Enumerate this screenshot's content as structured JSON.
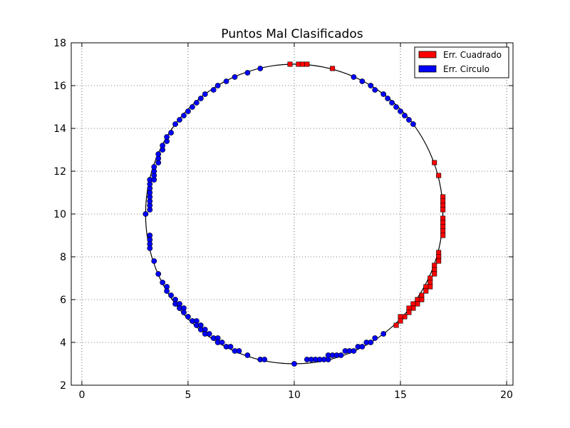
{
  "chart_data": {
    "type": "scatter",
    "title": "Puntos Mal Clasificados",
    "xlabel": "",
    "ylabel": "",
    "xlim": [
      -0.5,
      20.3
    ],
    "ylim": [
      2,
      18
    ],
    "xticks": [
      0,
      5,
      10,
      15,
      20
    ],
    "yticks": [
      2,
      4,
      6,
      8,
      10,
      12,
      14,
      16,
      18
    ],
    "grid": true,
    "legend_position": "top-right",
    "reference_curve": {
      "shape": "circle",
      "center": [
        10,
        10
      ],
      "radius": 7,
      "color": "#000000"
    },
    "series": [
      {
        "name": "Err. Cuadrado",
        "marker": "square",
        "color": "#ff0000",
        "points": [
          [
            9.8,
            17.0
          ],
          [
            10.2,
            17.0
          ],
          [
            10.4,
            17.0
          ],
          [
            10.6,
            17.0
          ],
          [
            11.8,
            16.8
          ],
          [
            16.6,
            12.4
          ],
          [
            16.8,
            11.8
          ],
          [
            17.0,
            10.8
          ],
          [
            17.0,
            10.6
          ],
          [
            17.0,
            10.4
          ],
          [
            17.0,
            10.2
          ],
          [
            17.0,
            9.8
          ],
          [
            17.0,
            9.6
          ],
          [
            17.0,
            9.4
          ],
          [
            17.0,
            9.2
          ],
          [
            17.0,
            9.0
          ],
          [
            16.8,
            8.2
          ],
          [
            16.8,
            8.0
          ],
          [
            16.8,
            7.8
          ],
          [
            16.6,
            7.6
          ],
          [
            16.6,
            7.4
          ],
          [
            16.6,
            7.2
          ],
          [
            16.4,
            7.0
          ],
          [
            16.4,
            6.8
          ],
          [
            16.4,
            6.6
          ],
          [
            16.2,
            6.6
          ],
          [
            16.2,
            6.4
          ],
          [
            16.0,
            6.2
          ],
          [
            16.0,
            6.0
          ],
          [
            15.8,
            6.0
          ],
          [
            15.8,
            5.8
          ],
          [
            15.6,
            5.8
          ],
          [
            15.6,
            5.6
          ],
          [
            15.4,
            5.6
          ],
          [
            15.4,
            5.4
          ],
          [
            15.2,
            5.2
          ],
          [
            15.0,
            5.2
          ],
          [
            15.0,
            5.0
          ],
          [
            14.8,
            4.8
          ]
        ]
      },
      {
        "name": "Err. Circulo",
        "marker": "circle",
        "color": "#0000ff",
        "points": [
          [
            3.0,
            10.0
          ],
          [
            3.2,
            10.2
          ],
          [
            3.2,
            10.4
          ],
          [
            3.2,
            10.6
          ],
          [
            3.2,
            10.8
          ],
          [
            3.2,
            11.0
          ],
          [
            3.2,
            11.2
          ],
          [
            3.2,
            11.4
          ],
          [
            3.2,
            11.6
          ],
          [
            3.4,
            11.6
          ],
          [
            3.4,
            11.8
          ],
          [
            3.4,
            12.0
          ],
          [
            3.4,
            12.2
          ],
          [
            3.6,
            12.4
          ],
          [
            3.6,
            12.6
          ],
          [
            3.6,
            12.8
          ],
          [
            3.8,
            13.0
          ],
          [
            3.8,
            13.2
          ],
          [
            4.0,
            13.4
          ],
          [
            4.0,
            13.6
          ],
          [
            4.2,
            13.8
          ],
          [
            4.4,
            14.2
          ],
          [
            4.6,
            14.4
          ],
          [
            4.8,
            14.6
          ],
          [
            5.0,
            14.8
          ],
          [
            5.2,
            15.0
          ],
          [
            5.4,
            15.2
          ],
          [
            5.6,
            15.4
          ],
          [
            5.8,
            15.6
          ],
          [
            6.2,
            15.8
          ],
          [
            6.4,
            16.0
          ],
          [
            6.8,
            16.2
          ],
          [
            7.2,
            16.4
          ],
          [
            7.8,
            16.6
          ],
          [
            8.4,
            16.8
          ],
          [
            12.8,
            16.4
          ],
          [
            13.2,
            16.2
          ],
          [
            13.6,
            16.0
          ],
          [
            13.8,
            15.8
          ],
          [
            14.2,
            15.6
          ],
          [
            14.4,
            15.4
          ],
          [
            14.6,
            15.2
          ],
          [
            14.8,
            15.0
          ],
          [
            15.0,
            14.8
          ],
          [
            15.2,
            14.6
          ],
          [
            15.4,
            14.4
          ],
          [
            15.6,
            14.2
          ],
          [
            3.2,
            9.0
          ],
          [
            3.2,
            8.8
          ],
          [
            3.2,
            8.6
          ],
          [
            3.2,
            8.4
          ],
          [
            3.4,
            7.8
          ],
          [
            3.6,
            7.2
          ],
          [
            3.8,
            6.8
          ],
          [
            4.0,
            6.6
          ],
          [
            4.0,
            6.4
          ],
          [
            4.2,
            6.2
          ],
          [
            4.4,
            6.0
          ],
          [
            4.4,
            5.8
          ],
          [
            4.6,
            5.8
          ],
          [
            4.6,
            5.6
          ],
          [
            4.8,
            5.6
          ],
          [
            4.8,
            5.4
          ],
          [
            5.0,
            5.2
          ],
          [
            5.2,
            5.0
          ],
          [
            5.4,
            5.0
          ],
          [
            5.4,
            4.8
          ],
          [
            5.6,
            4.8
          ],
          [
            5.6,
            4.6
          ],
          [
            5.8,
            4.6
          ],
          [
            5.8,
            4.4
          ],
          [
            6.0,
            4.4
          ],
          [
            6.2,
            4.2
          ],
          [
            6.4,
            4.2
          ],
          [
            6.4,
            4.0
          ],
          [
            6.6,
            4.0
          ],
          [
            6.8,
            3.8
          ],
          [
            7.0,
            3.8
          ],
          [
            7.2,
            3.6
          ],
          [
            7.4,
            3.6
          ],
          [
            7.8,
            3.4
          ],
          [
            8.4,
            3.2
          ],
          [
            8.6,
            3.2
          ],
          [
            10.0,
            3.0
          ],
          [
            10.6,
            3.2
          ],
          [
            10.8,
            3.2
          ],
          [
            11.0,
            3.2
          ],
          [
            11.2,
            3.2
          ],
          [
            11.4,
            3.2
          ],
          [
            11.6,
            3.2
          ],
          [
            11.6,
            3.4
          ],
          [
            11.8,
            3.4
          ],
          [
            12.0,
            3.4
          ],
          [
            12.2,
            3.4
          ],
          [
            12.4,
            3.6
          ],
          [
            12.6,
            3.6
          ],
          [
            12.8,
            3.6
          ],
          [
            13.0,
            3.8
          ],
          [
            13.2,
            3.8
          ],
          [
            13.4,
            4.0
          ],
          [
            13.6,
            4.0
          ],
          [
            13.8,
            4.2
          ],
          [
            14.2,
            4.4
          ]
        ]
      }
    ]
  }
}
